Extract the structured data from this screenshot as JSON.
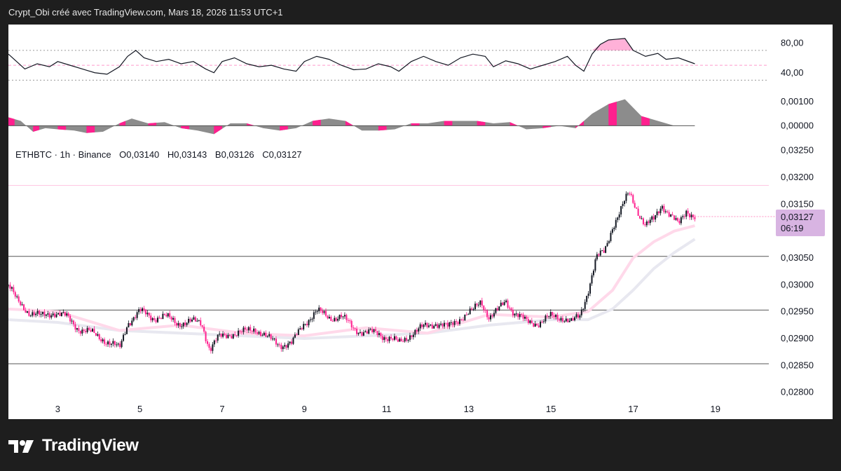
{
  "header": {
    "title": "Crypt_Obi créé avec TradingView.com, Mars 18, 2026 11:53 UTC+1"
  },
  "footer": {
    "brand": "TradingView"
  },
  "colors": {
    "accent": "#ff1f8e",
    "neutral": "#8c8c8c",
    "label_bg": "#d8b4e2",
    "background": "#1e1e1e"
  },
  "icons": {
    "logo": "tradingview-logo-icon"
  },
  "chart_data": {
    "type": "candlestick",
    "symbol_legend": {
      "symbol": "ETHBTC · 1h · Binance",
      "open": "O0,03140",
      "high": "H0,03143",
      "low": "B0,03126",
      "close": "C0,03127"
    },
    "x_ticks": [
      "3",
      "5",
      "7",
      "9",
      "11",
      "13",
      "15",
      "17",
      "19"
    ],
    "x_tick_days": [
      3,
      5,
      7,
      9,
      11,
      13,
      15,
      17,
      19
    ],
    "x_range_days": [
      1.8,
      20.3
    ],
    "price": {
      "ylim": [
        0.0278,
        0.0326
      ],
      "ticks": [
        0.028,
        0.0285,
        0.029,
        0.0295,
        0.03,
        0.0305,
        0.0315,
        0.032,
        0.0325
      ],
      "tick_labels": [
        "0,02800",
        "0,02850",
        "0,02900",
        "0,02950",
        "0,03000",
        "0,03050",
        "0,03150",
        "0,03200",
        "0,03250"
      ],
      "horizontal_levels": [
        0.02853,
        0.02953,
        0.03053
      ],
      "resistance_level": 0.03185,
      "last_price": 0.03127,
      "last_price_label": "0,03127",
      "countdown_label": "06:19",
      "close_path": [
        [
          1.8,
          0.03
        ],
        [
          2.0,
          0.0297
        ],
        [
          2.3,
          0.0295
        ],
        [
          2.6,
          0.0294
        ],
        [
          2.9,
          0.0295
        ],
        [
          3.2,
          0.0294
        ],
        [
          3.5,
          0.0292
        ],
        [
          3.8,
          0.0291
        ],
        [
          4.1,
          0.029
        ],
        [
          4.3,
          0.0289
        ],
        [
          4.5,
          0.0288
        ],
        [
          4.7,
          0.0293
        ],
        [
          5.0,
          0.0295
        ],
        [
          5.3,
          0.0294
        ],
        [
          5.6,
          0.0294
        ],
        [
          5.9,
          0.0293
        ],
        [
          6.2,
          0.0293
        ],
        [
          6.5,
          0.0293
        ],
        [
          6.7,
          0.0288
        ],
        [
          6.9,
          0.029
        ],
        [
          7.2,
          0.0291
        ],
        [
          7.5,
          0.0291
        ],
        [
          7.8,
          0.0292
        ],
        [
          8.1,
          0.029
        ],
        [
          8.4,
          0.0289
        ],
        [
          8.7,
          0.0289
        ],
        [
          9.0,
          0.0293
        ],
        [
          9.3,
          0.0295
        ],
        [
          9.6,
          0.0294
        ],
        [
          9.9,
          0.0294
        ],
        [
          10.2,
          0.0292
        ],
        [
          10.5,
          0.0291
        ],
        [
          10.8,
          0.0291
        ],
        [
          11.1,
          0.029
        ],
        [
          11.3,
          0.0289
        ],
        [
          11.6,
          0.0291
        ],
        [
          11.9,
          0.0292
        ],
        [
          12.2,
          0.0293
        ],
        [
          12.5,
          0.0292
        ],
        [
          12.8,
          0.0294
        ],
        [
          13.1,
          0.0295
        ],
        [
          13.3,
          0.0297
        ],
        [
          13.5,
          0.0294
        ],
        [
          13.7,
          0.0295
        ],
        [
          13.9,
          0.0297
        ],
        [
          14.1,
          0.0295
        ],
        [
          14.4,
          0.0293
        ],
        [
          14.7,
          0.0293
        ],
        [
          15.0,
          0.0294
        ],
        [
          15.3,
          0.0294
        ],
        [
          15.5,
          0.0293
        ],
        [
          15.7,
          0.0294
        ],
        [
          15.9,
          0.0299
        ],
        [
          16.1,
          0.0305
        ],
        [
          16.3,
          0.0306
        ],
        [
          16.5,
          0.0311
        ],
        [
          16.7,
          0.0314
        ],
        [
          16.9,
          0.0317
        ],
        [
          17.1,
          0.0314
        ],
        [
          17.3,
          0.0311
        ],
        [
          17.5,
          0.0312
        ],
        [
          17.7,
          0.0315
        ],
        [
          17.9,
          0.0313
        ],
        [
          18.1,
          0.0311
        ],
        [
          18.3,
          0.0314
        ],
        [
          18.5,
          0.03127
        ]
      ],
      "ma_fast_path": [
        [
          1.8,
          0.02955
        ],
        [
          3.0,
          0.0295
        ],
        [
          4.5,
          0.02915
        ],
        [
          6.0,
          0.02925
        ],
        [
          7.5,
          0.0291
        ],
        [
          9.0,
          0.02905
        ],
        [
          10.5,
          0.0292
        ],
        [
          12.0,
          0.0291
        ],
        [
          13.5,
          0.02945
        ],
        [
          15.0,
          0.0294
        ],
        [
          15.9,
          0.0295
        ],
        [
          16.5,
          0.0299
        ],
        [
          17.0,
          0.0305
        ],
        [
          17.5,
          0.0308
        ],
        [
          18.0,
          0.031
        ],
        [
          18.5,
          0.0311
        ]
      ],
      "ma_slow_path": [
        [
          1.8,
          0.02935
        ],
        [
          3.0,
          0.0293
        ],
        [
          4.5,
          0.02915
        ],
        [
          6.0,
          0.0291
        ],
        [
          7.5,
          0.02905
        ],
        [
          9.0,
          0.029
        ],
        [
          10.5,
          0.02905
        ],
        [
          12.0,
          0.0291
        ],
        [
          13.5,
          0.02925
        ],
        [
          15.0,
          0.02935
        ],
        [
          15.9,
          0.02935
        ],
        [
          16.5,
          0.02955
        ],
        [
          17.0,
          0.0299
        ],
        [
          17.5,
          0.0303
        ],
        [
          18.0,
          0.0306
        ],
        [
          18.5,
          0.03085
        ]
      ]
    },
    "oscillator": {
      "ylim": [
        20,
        100
      ],
      "ticks": [
        40,
        80
      ],
      "tick_labels": [
        "40,00",
        "80,00"
      ],
      "bands": [
        30,
        70
      ],
      "midline": 50,
      "values": [
        [
          1.8,
          65
        ],
        [
          2.0,
          55
        ],
        [
          2.2,
          45
        ],
        [
          2.5,
          52
        ],
        [
          2.8,
          48
        ],
        [
          3.0,
          55
        ],
        [
          3.3,
          50
        ],
        [
          3.6,
          45
        ],
        [
          3.9,
          40
        ],
        [
          4.2,
          38
        ],
        [
          4.5,
          48
        ],
        [
          4.7,
          62
        ],
        [
          4.9,
          70
        ],
        [
          5.1,
          60
        ],
        [
          5.4,
          55
        ],
        [
          5.7,
          58
        ],
        [
          6.0,
          52
        ],
        [
          6.3,
          55
        ],
        [
          6.6,
          45
        ],
        [
          6.8,
          40
        ],
        [
          7.0,
          55
        ],
        [
          7.3,
          60
        ],
        [
          7.6,
          52
        ],
        [
          7.9,
          48
        ],
        [
          8.2,
          50
        ],
        [
          8.5,
          45
        ],
        [
          8.8,
          42
        ],
        [
          9.0,
          55
        ],
        [
          9.3,
          62
        ],
        [
          9.6,
          58
        ],
        [
          9.9,
          50
        ],
        [
          10.2,
          44
        ],
        [
          10.5,
          45
        ],
        [
          10.8,
          52
        ],
        [
          11.1,
          48
        ],
        [
          11.3,
          42
        ],
        [
          11.6,
          55
        ],
        [
          11.9,
          62
        ],
        [
          12.2,
          55
        ],
        [
          12.5,
          50
        ],
        [
          12.8,
          60
        ],
        [
          13.1,
          65
        ],
        [
          13.4,
          62
        ],
        [
          13.6,
          48
        ],
        [
          13.9,
          56
        ],
        [
          14.2,
          52
        ],
        [
          14.5,
          45
        ],
        [
          14.8,
          50
        ],
        [
          15.1,
          55
        ],
        [
          15.4,
          62
        ],
        [
          15.6,
          50
        ],
        [
          15.8,
          42
        ],
        [
          16.0,
          65
        ],
        [
          16.2,
          78
        ],
        [
          16.4,
          84
        ],
        [
          16.6,
          85
        ],
        [
          16.8,
          86
        ],
        [
          17.0,
          70
        ],
        [
          17.3,
          62
        ],
        [
          17.6,
          66
        ],
        [
          17.8,
          58
        ],
        [
          18.1,
          60
        ],
        [
          18.3,
          56
        ],
        [
          18.5,
          52
        ]
      ]
    },
    "histogram": {
      "ylim": [
        -0.0006,
        0.00135
      ],
      "ticks": [
        0,
        0.001
      ],
      "tick_labels": [
        "0,00000",
        "0,00100"
      ],
      "series": [
        {
          "color": "accent",
          "values": [
            [
              1.8,
              0.00035
            ],
            [
              2.1,
              0.0002
            ],
            [
              2.4,
              -0.00025
            ],
            [
              2.7,
              -0.0001
            ],
            [
              3.0,
              -0.00015
            ],
            [
              3.4,
              -0.0002
            ],
            [
              3.7,
              -0.0003
            ],
            [
              4.1,
              -0.00025
            ],
            [
              4.5,
              0.0001
            ],
            [
              4.8,
              0.0003
            ],
            [
              5.2,
              0.0001
            ],
            [
              5.6,
              0.00015
            ],
            [
              6.0,
              -0.0001
            ],
            [
              6.4,
              -0.0002
            ],
            [
              6.8,
              -0.00035
            ],
            [
              7.2,
              0.0001
            ],
            [
              7.6,
              0.0001
            ],
            [
              8.0,
              -0.0001
            ],
            [
              8.4,
              -0.0002
            ],
            [
              8.8,
              -0.0001
            ],
            [
              9.2,
              0.0002
            ],
            [
              9.6,
              0.0003
            ],
            [
              10.0,
              0.0002
            ],
            [
              10.4,
              -0.0002
            ],
            [
              10.8,
              -0.0002
            ],
            [
              11.2,
              -0.00015
            ],
            [
              11.6,
              0.0001
            ],
            [
              12.0,
              0.0001
            ],
            [
              12.4,
              0.0002
            ],
            [
              12.8,
              0.0002
            ],
            [
              13.2,
              0.0002
            ],
            [
              13.6,
              0.0001
            ],
            [
              14.0,
              0.00015
            ],
            [
              14.4,
              -0.00015
            ],
            [
              14.8,
              -0.0001
            ],
            [
              15.2,
              0.0
            ],
            [
              15.6,
              -0.0001
            ],
            [
              16.0,
              0.0005
            ],
            [
              16.4,
              0.0009
            ],
            [
              16.8,
              0.0011
            ],
            [
              17.2,
              0.0004
            ],
            [
              17.6,
              0.0002
            ],
            [
              18.0,
              0.0
            ],
            [
              18.5,
              0.0
            ]
          ]
        }
      ]
    }
  }
}
